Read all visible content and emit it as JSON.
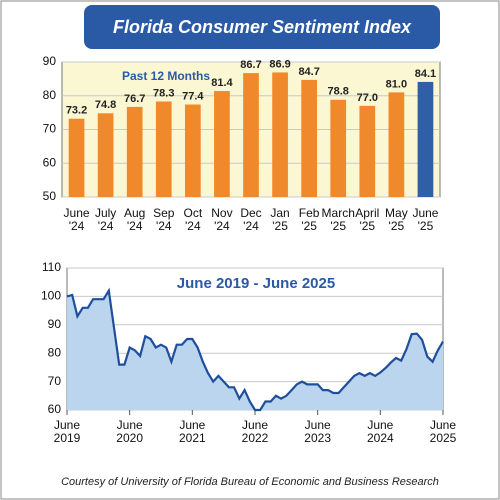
{
  "title": "Florida Consumer Sentiment Index",
  "source": "Courtesy of University of Florida Bureau of Economic and Business Research",
  "chart_data": [
    {
      "type": "bar",
      "annotation": "Past 12 Months",
      "categories": [
        "June '24",
        "July '24",
        "Aug '24",
        "Sep '24",
        "Oct '24",
        "Nov '24",
        "Dec '24",
        "Jan '25",
        "Feb '25",
        "March '25",
        "April '25",
        "May '25",
        "June '25"
      ],
      "values": [
        73.2,
        74.8,
        76.7,
        78.3,
        77.4,
        81.4,
        86.7,
        86.9,
        84.7,
        78.8,
        77.0,
        81.0,
        84.1
      ],
      "value_labels": [
        "73.2",
        "74.8",
        "76.7",
        "78.3",
        "77.4",
        "81.4",
        "86.7",
        "86.9",
        "84.7",
        "78.8",
        "77.0",
        "81.0",
        "84.1"
      ],
      "colors": [
        "#f0892b",
        "#f0892b",
        "#f0892b",
        "#f0892b",
        "#f0892b",
        "#f0892b",
        "#f0892b",
        "#f0892b",
        "#f0892b",
        "#f0892b",
        "#f0892b",
        "#f0892b",
        "#2f5fa7"
      ],
      "ylim": [
        50,
        90
      ],
      "yticks": [
        50,
        60,
        70,
        80,
        90
      ],
      "grid": true
    },
    {
      "type": "area",
      "annotation": "June 2019 - June 2025",
      "color": "#1f4e9c",
      "fill": "#bcd5ee",
      "x": [
        "2019-06",
        "2019-07",
        "2019-08",
        "2019-09",
        "2019-10",
        "2019-11",
        "2019-12",
        "2020-01",
        "2020-02",
        "2020-03",
        "2020-04",
        "2020-05",
        "2020-06",
        "2020-07",
        "2020-08",
        "2020-09",
        "2020-10",
        "2020-11",
        "2020-12",
        "2021-01",
        "2021-02",
        "2021-03",
        "2021-04",
        "2021-05",
        "2021-06",
        "2021-07",
        "2021-08",
        "2021-09",
        "2021-10",
        "2021-11",
        "2021-12",
        "2022-01",
        "2022-02",
        "2022-03",
        "2022-04",
        "2022-05",
        "2022-06",
        "2022-07",
        "2022-08",
        "2022-09",
        "2022-10",
        "2022-11",
        "2022-12",
        "2023-01",
        "2023-02",
        "2023-03",
        "2023-04",
        "2023-05",
        "2023-06",
        "2023-07",
        "2023-08",
        "2023-09",
        "2023-10",
        "2023-11",
        "2023-12",
        "2024-01",
        "2024-02",
        "2024-03",
        "2024-04",
        "2024-05",
        "2024-06",
        "2024-07",
        "2024-08",
        "2024-09",
        "2024-10",
        "2024-11",
        "2024-12",
        "2025-01",
        "2025-02",
        "2025-03",
        "2025-04",
        "2025-05",
        "2025-06"
      ],
      "values": [
        100,
        100.5,
        93,
        96,
        96,
        99,
        99,
        99,
        102,
        89,
        76,
        76,
        82,
        81,
        79,
        86,
        85,
        82,
        83,
        82,
        77,
        83,
        83,
        85,
        85,
        82,
        77,
        73,
        70,
        72,
        70,
        68,
        68,
        64,
        67,
        63,
        60,
        60,
        63,
        63,
        65,
        64,
        65,
        67,
        69,
        70,
        69,
        69,
        69,
        67,
        67,
        66,
        66,
        68,
        70,
        72,
        73,
        72,
        73,
        72,
        73.2,
        74.8,
        76.7,
        78.3,
        77.4,
        81.4,
        86.7,
        86.9,
        84.7,
        78.8,
        77.0,
        81.0,
        84.1
      ],
      "xlim": [
        "2019-06",
        "2025-06"
      ],
      "xticks": [
        {
          "value": "2019-06",
          "label": "June 2019"
        },
        {
          "value": "2020-06",
          "label": "June 2020"
        },
        {
          "value": "2021-06",
          "label": "June 2021"
        },
        {
          "value": "2022-06",
          "label": "June 2022"
        },
        {
          "value": "2023-06",
          "label": "June 2023"
        },
        {
          "value": "2024-06",
          "label": "June 2024"
        },
        {
          "value": "2025-06",
          "label": "June 2025"
        }
      ],
      "ylim": [
        60,
        110
      ],
      "yticks": [
        60,
        70,
        80,
        90,
        100,
        110
      ],
      "grid": true
    }
  ]
}
